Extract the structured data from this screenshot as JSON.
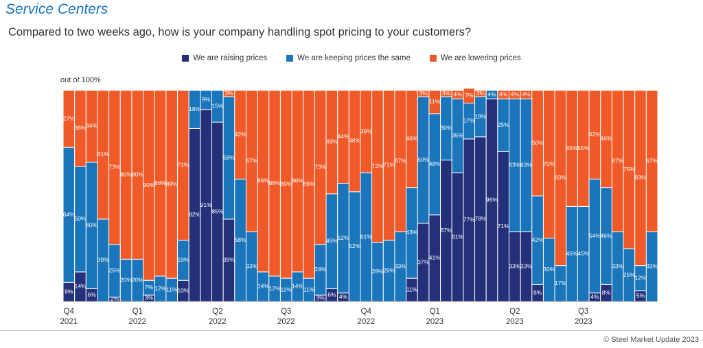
{
  "chart_data": {
    "type": "stacked-bar",
    "title": "Service Centers",
    "subtitle": "Compared to two weeks ago, how is your company handling spot pricing to your customers?",
    "y_label": "out of 100%",
    "source": "© Steel Market Update 2023",
    "ylim": [
      0,
      100
    ],
    "categories": [
      "Q4\n2021",
      null,
      null,
      null,
      null,
      null,
      "Q1\n2022",
      null,
      null,
      null,
      null,
      null,
      null,
      "Q2\n2022",
      null,
      null,
      null,
      null,
      null,
      "Q3\n2022",
      null,
      null,
      null,
      null,
      null,
      null,
      "Q4\n2022",
      null,
      null,
      null,
      null,
      null,
      "Q1\n2023",
      null,
      null,
      null,
      null,
      null,
      null,
      "Q2\n2023",
      null,
      null,
      null,
      null,
      null,
      "Q3\n2023",
      null,
      null,
      null,
      null,
      null,
      null
    ],
    "series": [
      {
        "name": "We are raising prices",
        "color": "#24307a",
        "values": [
          9,
          14,
          6,
          0,
          2,
          0,
          0,
          3,
          0,
          0,
          10,
          82,
          91,
          85,
          39,
          0,
          0,
          0,
          0,
          0,
          0,
          0,
          3,
          6,
          4,
          0,
          0,
          0,
          0,
          0,
          11,
          37,
          41,
          67,
          61,
          77,
          78,
          96,
          71,
          33,
          33,
          8,
          0,
          0,
          0,
          0,
          4,
          8,
          0,
          0,
          5,
          0
        ],
        "value_labels": [
          "9%",
          "14%",
          "6%",
          null,
          "2%",
          null,
          null,
          "3%",
          null,
          null,
          "10%",
          "82%",
          "91%",
          "85%",
          "39%",
          null,
          null,
          null,
          null,
          null,
          null,
          null,
          "3%",
          "6%",
          "4%",
          null,
          null,
          null,
          null,
          null,
          "11%",
          "37%",
          "41%",
          "67%",
          "61%",
          "77%",
          "78%",
          "96%",
          "71%",
          "33%",
          "33%",
          "8%",
          null,
          null,
          null,
          null,
          "4%",
          "8%",
          null,
          null,
          "5%",
          null
        ]
      },
      {
        "name": "We are keeping prices the same",
        "color": "#1a75bb",
        "values": [
          64,
          50,
          60,
          39,
          25,
          20,
          20,
          7,
          12,
          11,
          19,
          18,
          9,
          15,
          58,
          58,
          33,
          14,
          12,
          11,
          14,
          11,
          24,
          45,
          52,
          52,
          61,
          28,
          29,
          33,
          43,
          60,
          48,
          30,
          35,
          17,
          19,
          4,
          25,
          63,
          63,
          42,
          30,
          17,
          45,
          45,
          54,
          46,
          33,
          25,
          12,
          33
        ],
        "value_labels": [
          "64%",
          "50%",
          "60%",
          "39%",
          "25%",
          "20%",
          "20%",
          "7%",
          "12%",
          "11%",
          "19%",
          "18%",
          "9%",
          "15%",
          "58%",
          "58%",
          "33%",
          "14%",
          "12%",
          "11%",
          "14%",
          "11%",
          "24%",
          "45%",
          "52%",
          "52%",
          "61%",
          "28%",
          "29%",
          "33%",
          "43%",
          "60%",
          "48%",
          "30%",
          "35%",
          "17%",
          "19%",
          "4%",
          "25%",
          "63%",
          "63%",
          "42%",
          "30%",
          "17%",
          "45%",
          "45%",
          "54%",
          "46%",
          "33%",
          "25%",
          "12%",
          "33%"
        ]
      },
      {
        "name": "We are lowering prices",
        "color": "#f05a28",
        "values": [
          27,
          36,
          34,
          61,
          73,
          80,
          80,
          90,
          88,
          89,
          71,
          0,
          0,
          0,
          3,
          42,
          67,
          86,
          88,
          89,
          86,
          89,
          73,
          49,
          44,
          48,
          39,
          72,
          71,
          67,
          46,
          3,
          11,
          3,
          4,
          7,
          3,
          0,
          4,
          4,
          4,
          50,
          70,
          83,
          55,
          55,
          42,
          46,
          67,
          75,
          83,
          67
        ],
        "value_labels": [
          "27%",
          "36%",
          "34%",
          "61%",
          "73%",
          "80%",
          "80%",
          "90%",
          "88%",
          "89%",
          "71%",
          null,
          null,
          null,
          "3%",
          "42%",
          "67%",
          "86%",
          "88%",
          "89%",
          "86%",
          "89%",
          "73%",
          "49%",
          "44%",
          "48%",
          "39%",
          "72%",
          "71%",
          "67%",
          "46%",
          "3%",
          "11%",
          "3%",
          "4%",
          "7%",
          "3%",
          null,
          "4%",
          "4%",
          "4%",
          "50%",
          "70%",
          "83%",
          "55%",
          "55%",
          "42%",
          "46%",
          "67%",
          "75%",
          "83%",
          "67%"
        ]
      }
    ]
  }
}
